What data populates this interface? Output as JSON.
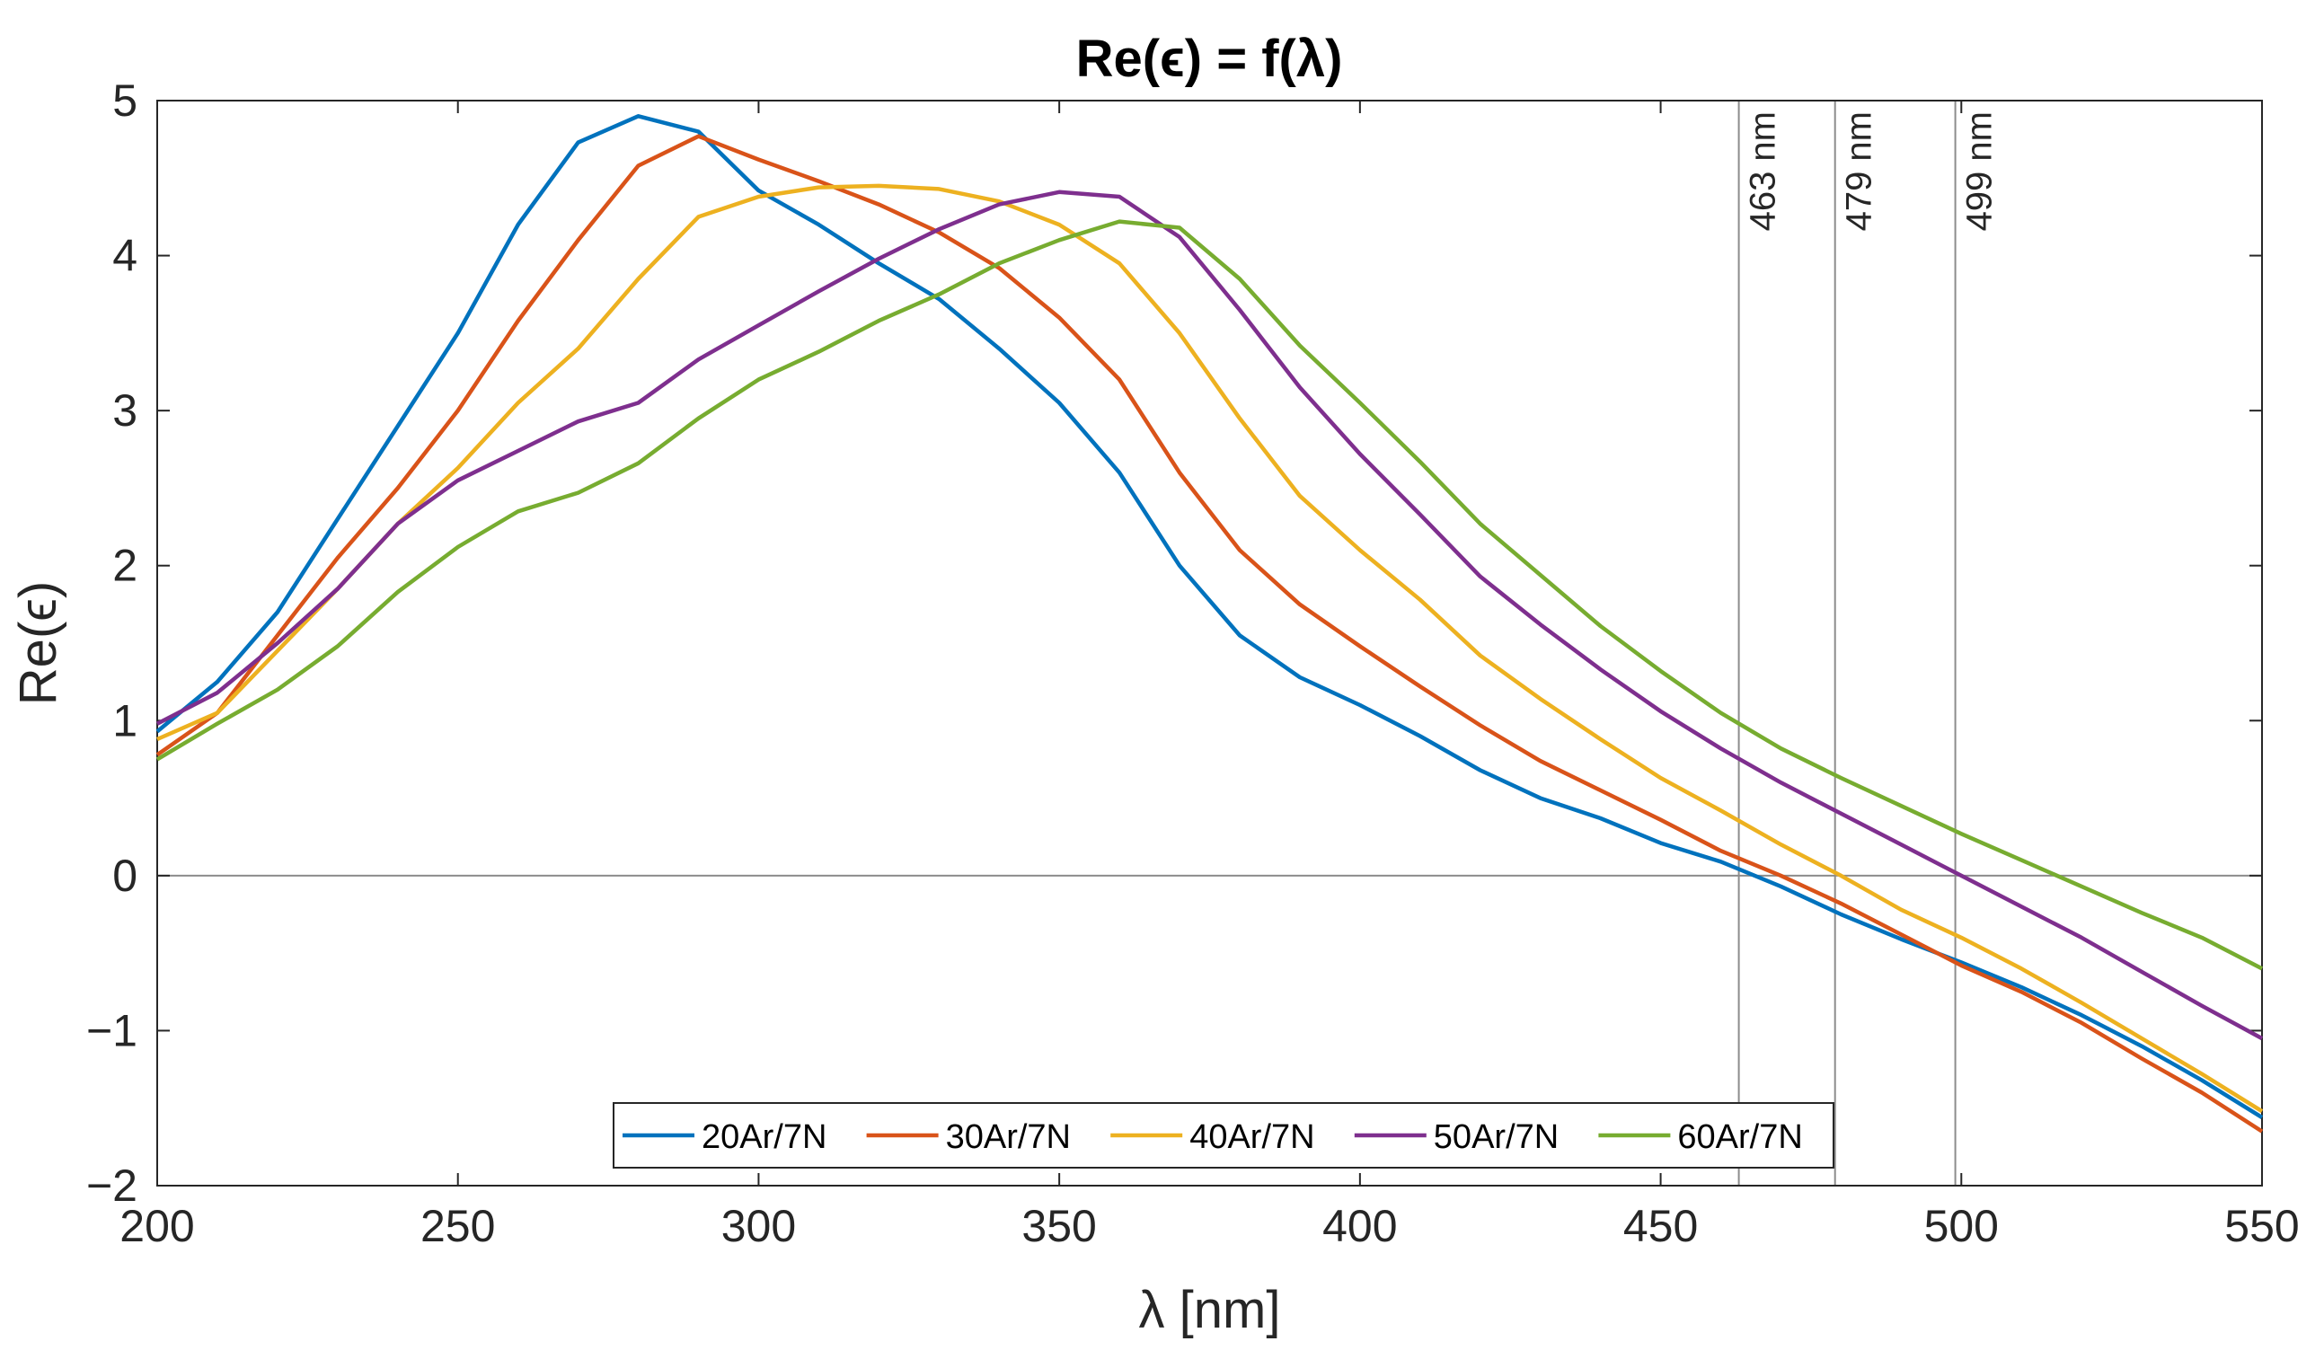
{
  "chart_data": {
    "type": "line",
    "title": "Re(ϵ) = f(λ)",
    "xlabel": "λ [nm]",
    "ylabel": "Re(ϵ)",
    "xlim": [
      200,
      550
    ],
    "ylim": [
      -2,
      5
    ],
    "xticks": [
      200,
      250,
      300,
      350,
      400,
      450,
      500,
      550
    ],
    "yticks": [
      -2,
      -1,
      0,
      1,
      2,
      3,
      4,
      5
    ],
    "xtick_labels": [
      "200",
      "250",
      "300",
      "350",
      "400",
      "450",
      "500",
      "550"
    ],
    "ytick_labels": [
      "−2",
      "−1",
      "0",
      "1",
      "2",
      "3",
      "4",
      "5"
    ],
    "grid": false,
    "legend_position": "bottom-center",
    "x": [
      200,
      210,
      220,
      230,
      240,
      250,
      260,
      270,
      280,
      290,
      300,
      310,
      320,
      330,
      340,
      350,
      360,
      370,
      380,
      390,
      400,
      410,
      420,
      430,
      440,
      450,
      460,
      470,
      480,
      490,
      500,
      510,
      520,
      530,
      540,
      550
    ],
    "series": [
      {
        "name": "20Ar/7N",
        "color": "#0072BD",
        "values": [
          0.93,
          1.25,
          1.7,
          2.3,
          2.9,
          3.5,
          4.2,
          4.73,
          4.9,
          4.8,
          4.42,
          4.2,
          3.95,
          3.72,
          3.4,
          3.05,
          2.6,
          2.0,
          1.55,
          1.28,
          1.1,
          0.9,
          0.68,
          0.5,
          0.37,
          0.21,
          0.09,
          -0.07,
          -0.25,
          -0.41,
          -0.56,
          -0.72,
          -0.9,
          -1.1,
          -1.32,
          -1.56
        ]
      },
      {
        "name": "30Ar/7N",
        "color": "#D95319",
        "values": [
          0.78,
          1.05,
          1.55,
          2.05,
          2.5,
          3.0,
          3.58,
          4.1,
          4.58,
          4.77,
          4.62,
          4.48,
          4.33,
          4.15,
          3.92,
          3.6,
          3.2,
          2.6,
          2.1,
          1.75,
          1.48,
          1.22,
          0.97,
          0.74,
          0.55,
          0.36,
          0.16,
          0.0,
          -0.18,
          -0.38,
          -0.58,
          -0.75,
          -0.95,
          -1.18,
          -1.4,
          -1.65
        ]
      },
      {
        "name": "40Ar/7N",
        "color": "#EDB120",
        "values": [
          0.88,
          1.05,
          1.45,
          1.85,
          2.27,
          2.63,
          3.05,
          3.4,
          3.85,
          4.25,
          4.38,
          4.44,
          4.45,
          4.43,
          4.35,
          4.2,
          3.95,
          3.5,
          2.95,
          2.45,
          2.1,
          1.78,
          1.42,
          1.14,
          0.88,
          0.63,
          0.42,
          0.2,
          0.0,
          -0.22,
          -0.4,
          -0.6,
          -0.82,
          -1.05,
          -1.28,
          -1.52
        ]
      },
      {
        "name": "50Ar/7N",
        "color": "#7E2F8E",
        "values": [
          0.98,
          1.18,
          1.5,
          1.85,
          2.27,
          2.55,
          2.74,
          2.93,
          3.05,
          3.33,
          3.55,
          3.77,
          3.98,
          4.17,
          4.33,
          4.41,
          4.38,
          4.12,
          3.65,
          3.15,
          2.72,
          2.33,
          1.93,
          1.62,
          1.33,
          1.06,
          0.82,
          0.6,
          0.4,
          0.2,
          0.0,
          -0.2,
          -0.4,
          -0.62,
          -0.84,
          -1.05
        ]
      },
      {
        "name": "60Ar/7N",
        "color": "#77AC30",
        "values": [
          0.75,
          0.98,
          1.2,
          1.48,
          1.83,
          2.12,
          2.35,
          2.47,
          2.66,
          2.95,
          3.2,
          3.38,
          3.58,
          3.75,
          3.95,
          4.1,
          4.22,
          4.18,
          3.85,
          3.42,
          3.05,
          2.67,
          2.27,
          1.94,
          1.61,
          1.32,
          1.05,
          0.82,
          0.63,
          0.45,
          0.27,
          0.1,
          -0.07,
          -0.24,
          -0.4,
          -0.6
        ]
      }
    ],
    "vertical_lines": [
      {
        "x": 463,
        "label": "463 nm"
      },
      {
        "x": 479,
        "label": "479 nm"
      },
      {
        "x": 499,
        "label": "499 nm"
      }
    ],
    "horizontal_lines": [
      {
        "y": 0
      }
    ]
  }
}
